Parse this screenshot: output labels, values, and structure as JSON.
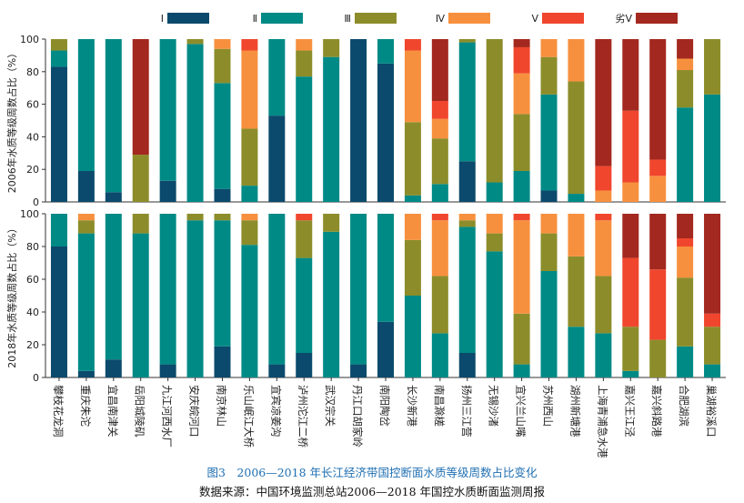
{
  "caption": {
    "title": "图3　2006—2018 年长江经济带国控断面水质等级周数占比变化",
    "source": "数据来源：中国环境监测总站2006—2018 年国控水质断面监测周报"
  },
  "chart_data": {
    "type": "bar",
    "stacked": true,
    "legend": {
      "position": "top",
      "entries": [
        "Ⅰ",
        "Ⅱ",
        "Ⅲ",
        "Ⅳ",
        "Ⅴ",
        "劣Ⅴ"
      ]
    },
    "colors": [
      "#0b4a6c",
      "#008a86",
      "#8c8d2a",
      "#f7903e",
      "#f0462d",
      "#a3281f"
    ],
    "categories": [
      "攀枝花龙洞",
      "重庆朱沱",
      "宜昌南津关",
      "岳阳城陵矶",
      "九江河西水厂",
      "安庆皖河口",
      "南京林山",
      "乐山岷江大桥",
      "宜宾凉姜沟",
      "泸州沱江二桥",
      "武汉宗关",
      "丹江口胡家岭",
      "南阳陶岔",
      "长沙新港",
      "南昌滁槎",
      "扬州三江营",
      "无锡沙渚",
      "宜兴兰山嘴",
      "苏州西山",
      "湖州新塘港",
      "上海青浦急水港",
      "嘉兴王江泾",
      "嘉兴斜路港",
      "合肥湖滨",
      "巢湖裕溪口"
    ],
    "panels": [
      {
        "ylabel": "2006年水质等级周数占比（%）",
        "ylim": [
          0,
          100
        ],
        "yticks": [
          0,
          20,
          40,
          60,
          80,
          100
        ],
        "series": [
          {
            "name": "Ⅰ",
            "values": [
              83,
              19,
              6,
              0,
              13,
              0,
              8,
              0,
              53,
              0,
              0,
              100,
              85,
              0,
              0,
              25,
              0,
              0,
              7,
              0,
              0,
              0,
              0,
              0,
              0
            ]
          },
          {
            "name": "Ⅱ",
            "values": [
              10,
              81,
              94,
              0,
              87,
              97,
              65,
              10,
              47,
              77,
              89,
              0,
              15,
              4,
              11,
              73,
              12,
              19,
              59,
              5,
              0,
              0,
              0,
              58,
              66
            ]
          },
          {
            "name": "Ⅲ",
            "values": [
              7,
              0,
              0,
              29,
              0,
              3,
              21,
              35,
              0,
              16,
              11,
              0,
              0,
              45,
              28,
              2,
              88,
              35,
              23,
              69,
              0,
              0,
              0,
              23,
              34
            ]
          },
          {
            "name": "Ⅳ",
            "values": [
              0,
              0,
              0,
              0,
              0,
              0,
              6,
              48,
              0,
              7,
              0,
              0,
              0,
              44,
              12,
              0,
              0,
              25,
              11,
              26,
              7,
              12,
              16,
              7,
              0
            ]
          },
          {
            "name": "Ⅴ",
            "values": [
              0,
              0,
              0,
              0,
              0,
              0,
              0,
              7,
              0,
              0,
              0,
              0,
              0,
              7,
              11,
              0,
              0,
              16,
              0,
              0,
              15,
              44,
              10,
              0,
              0
            ]
          },
          {
            "name": "劣Ⅴ",
            "values": [
              0,
              0,
              0,
              71,
              0,
              0,
              0,
              0,
              0,
              0,
              0,
              0,
              0,
              0,
              38,
              0,
              0,
              5,
              0,
              0,
              78,
              44,
              74,
              12,
              0
            ]
          }
        ]
      },
      {
        "ylabel": "2018年水质等级周数占比（%）",
        "ylim": [
          0,
          100
        ],
        "yticks": [
          0,
          20,
          40,
          60,
          80,
          100
        ],
        "series": [
          {
            "name": "Ⅰ",
            "values": [
              80,
              4,
              11,
              0,
              8,
              0,
              19,
              0,
              8,
              15,
              0,
              8,
              34,
              0,
              0,
              15,
              0,
              0,
              0,
              0,
              0,
              0,
              0,
              0,
              0
            ]
          },
          {
            "name": "Ⅱ",
            "values": [
              20,
              84,
              89,
              88,
              92,
              96,
              77,
              81,
              92,
              58,
              89,
              92,
              66,
              50,
              27,
              77,
              77,
              8,
              65,
              31,
              27,
              4,
              0,
              19,
              8
            ]
          },
          {
            "name": "Ⅲ",
            "values": [
              0,
              8,
              0,
              12,
              0,
              4,
              4,
              15,
              0,
              23,
              11,
              0,
              0,
              34,
              35,
              4,
              11,
              31,
              23,
              43,
              35,
              27,
              23,
              42,
              23
            ]
          },
          {
            "name": "Ⅳ",
            "values": [
              0,
              4,
              0,
              0,
              0,
              0,
              0,
              4,
              0,
              0,
              0,
              0,
              0,
              16,
              34,
              4,
              12,
              57,
              12,
              26,
              34,
              0,
              0,
              19,
              0
            ]
          },
          {
            "name": "Ⅴ",
            "values": [
              0,
              0,
              0,
              0,
              0,
              0,
              0,
              0,
              0,
              4,
              0,
              0,
              0,
              0,
              4,
              0,
              0,
              4,
              0,
              0,
              4,
              42,
              43,
              5,
              8
            ]
          },
          {
            "name": "劣Ⅴ",
            "values": [
              0,
              0,
              0,
              0,
              0,
              0,
              0,
              0,
              0,
              0,
              0,
              0,
              0,
              0,
              0,
              0,
              0,
              0,
              0,
              0,
              0,
              27,
              34,
              15,
              61
            ]
          }
        ]
      }
    ]
  }
}
